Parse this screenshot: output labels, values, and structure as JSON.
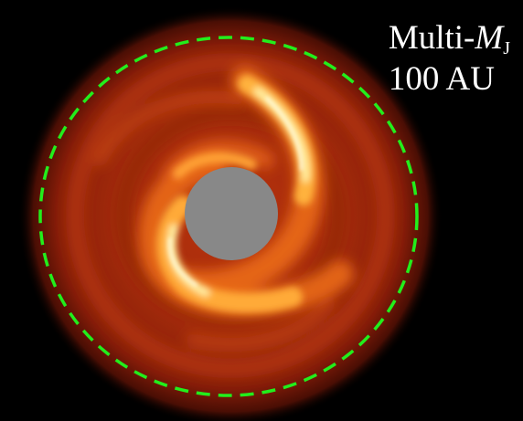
{
  "label": {
    "prefix": "Multi-",
    "symbol": "M",
    "subscript": "J",
    "distance": "100 AU"
  },
  "colors": {
    "background": "#000000",
    "disk_outer": "#7a1306",
    "disk_mid": "#c0360d",
    "disk_arm": "#f27a1c",
    "disk_arm_bright": "#ffd24a",
    "mask": "#888888",
    "ring": "#22ee1c",
    "text": "#ffffff"
  }
}
